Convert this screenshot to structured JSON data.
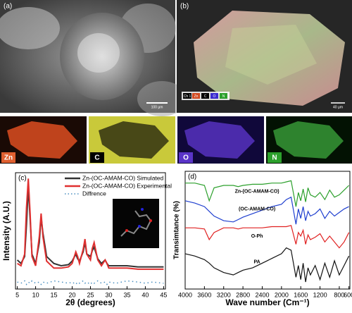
{
  "panels": {
    "a": {
      "label": "(a)",
      "scale_bar": "100 µm"
    },
    "b": {
      "label": "(b)",
      "scale_bar": "40 µm",
      "legend": [
        "Ch 1",
        "Zn",
        "C",
        "O",
        "N"
      ]
    },
    "eds": [
      "Zn",
      "C",
      "O",
      "N"
    ]
  },
  "chart_data": [
    {
      "type": "line",
      "panel_label": "(c)",
      "x_label": "2θ (degrees)",
      "y_label": "Intensity (A.U.)",
      "x": [
        5,
        6,
        7,
        7.5,
        8,
        8.5,
        9,
        10,
        11,
        11.5,
        12,
        13,
        15,
        17,
        19,
        20,
        21,
        21.5,
        22,
        23,
        23.5,
        24,
        25,
        25.5,
        26,
        27,
        28,
        29,
        29.5,
        30,
        32,
        35,
        38,
        40,
        42,
        45
      ],
      "xlim": [
        4.5,
        45.5
      ],
      "xticks": [
        5,
        10,
        15,
        20,
        25,
        30,
        35,
        40,
        45
      ],
      "ylim": [
        0,
        100
      ],
      "legend": "upper right",
      "series": [
        {
          "name": "Zn-(OC-AMAM-CO) Simulated",
          "color": "#333333",
          "style": "solid",
          "values": [
            25,
            22,
            28,
            55,
            88,
            60,
            30,
            22,
            40,
            62,
            48,
            28,
            22,
            20,
            21,
            24,
            30,
            26,
            24,
            32,
            40,
            30,
            28,
            33,
            36,
            26,
            22,
            25,
            22,
            20,
            20,
            20,
            19,
            19,
            19,
            19
          ]
        },
        {
          "name": "Zn-(OC-AMAM-CO) Experimental",
          "color": "#e03030",
          "style": "solid",
          "values": [
            22,
            20,
            30,
            70,
            95,
            65,
            28,
            20,
            45,
            65,
            45,
            24,
            18,
            18,
            19,
            22,
            32,
            28,
            22,
            34,
            43,
            30,
            25,
            35,
            40,
            25,
            20,
            25,
            22,
            18,
            18,
            18,
            17,
            17,
            17,
            17
          ]
        },
        {
          "name": "Diffrence",
          "color": "#4a8fc0",
          "style": "dotted",
          "values": [
            6,
            5,
            7,
            4,
            6,
            5,
            7,
            5,
            6,
            4,
            6,
            5,
            7,
            6,
            5,
            6,
            4,
            6,
            5,
            7,
            5,
            6,
            4,
            6,
            5,
            7,
            5,
            6,
            4,
            6,
            5,
            7,
            6,
            5,
            6,
            5
          ]
        }
      ]
    },
    {
      "type": "line",
      "panel_label": "(d)",
      "x_label": "Wave number (Cm⁻¹)",
      "y_label": "Transimtance (%)",
      "x": [
        4000,
        3800,
        3600,
        3500,
        3400,
        3200,
        3000,
        2900,
        2800,
        2600,
        2400,
        2200,
        2000,
        1900,
        1800,
        1700,
        1650,
        1600,
        1550,
        1500,
        1450,
        1400,
        1300,
        1200,
        1100,
        1000,
        900,
        800,
        700,
        600
      ],
      "xlim": [
        4000,
        580
      ],
      "xticks": [
        4000,
        3600,
        3200,
        2800,
        2400,
        2000,
        1600,
        1200,
        800,
        600
      ],
      "ylim": [
        0,
        100
      ],
      "series_labels": "inline",
      "series": [
        {
          "name": "Zn-(OC-AMAM-CO)",
          "color": "#2ca02c",
          "values": [
            90,
            90,
            88,
            75,
            86,
            88,
            88,
            87,
            88,
            89,
            89,
            90,
            90,
            91,
            92,
            70,
            82,
            75,
            85,
            74,
            86,
            80,
            78,
            82,
            76,
            84,
            78,
            80,
            84,
            88
          ]
        },
        {
          "name": "(OC-AMAM-CO)",
          "color": "#1f3fcf",
          "values": [
            75,
            73,
            70,
            66,
            62,
            58,
            57,
            59,
            61,
            64,
            67,
            70,
            72,
            76,
            78,
            55,
            68,
            60,
            70,
            58,
            66,
            62,
            64,
            68,
            60,
            66,
            62,
            65,
            68,
            70
          ]
        },
        {
          "name": "O-Ph",
          "color": "#e02020",
          "values": [
            52,
            52,
            51,
            42,
            48,
            52,
            52,
            51,
            52,
            52,
            52,
            53,
            53,
            53,
            54,
            38,
            48,
            45,
            50,
            38,
            46,
            42,
            44,
            47,
            40,
            45,
            40,
            35,
            40,
            48
          ]
        },
        {
          "name": "PA",
          "color": "#111111",
          "values": [
            30,
            28,
            25,
            22,
            18,
            14,
            12,
            14,
            16,
            18,
            22,
            26,
            30,
            35,
            33,
            10,
            20,
            8,
            22,
            6,
            18,
            12,
            20,
            8,
            22,
            10,
            24,
            12,
            20,
            28
          ]
        }
      ]
    }
  ]
}
